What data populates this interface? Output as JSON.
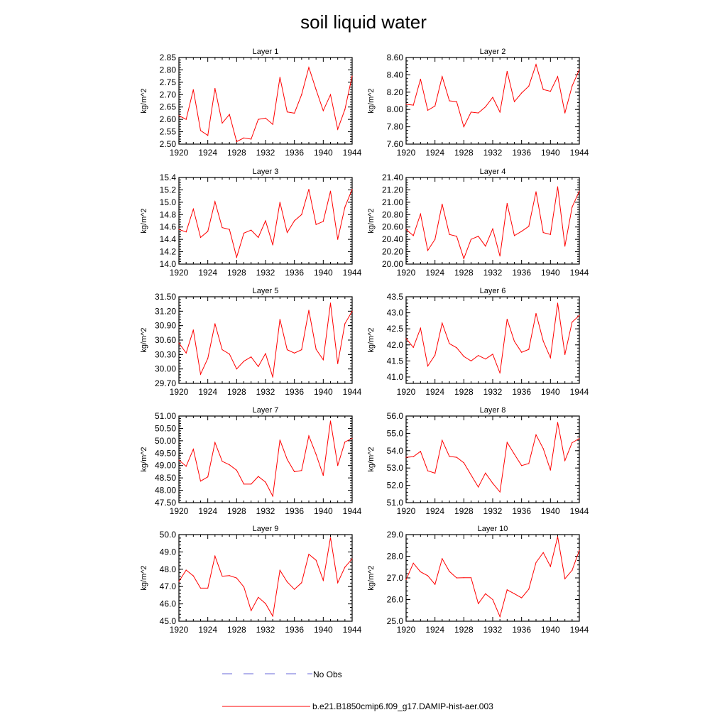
{
  "title": "soil liquid water",
  "legend": {
    "items": [
      {
        "label": "No Obs",
        "color": "#6a6ad8",
        "style": "dashed"
      },
      {
        "label": "b.e21.B1850cmip6.f09_g17.DAMIP-hist-aer.003",
        "color": "#ff0000",
        "style": "solid"
      }
    ]
  },
  "chart_data": [
    {
      "type": "line",
      "title": "Layer 1",
      "ylabel": "kg/m^2",
      "xlabel": "",
      "xlim": [
        1920,
        1944
      ],
      "ylim": [
        2.5,
        2.85
      ],
      "xticks": [
        1920,
        1924,
        1928,
        1932,
        1936,
        1940,
        1944
      ],
      "yticks": [
        "2.50",
        "2.55",
        "2.60",
        "2.65",
        "2.70",
        "2.75",
        "2.80",
        "2.85"
      ],
      "x": [
        1920,
        1921,
        1922,
        1923,
        1924,
        1925,
        1926,
        1927,
        1928,
        1929,
        1930,
        1931,
        1932,
        1933,
        1934,
        1935,
        1936,
        1937,
        1938,
        1939,
        1940,
        1941,
        1942,
        1943,
        1944
      ],
      "series": [
        {
          "name": "b.e21.B1850cmip6.f09_g17.DAMIP-hist-aer.003",
          "color": "#ff0000",
          "values": [
            2.615,
            2.6,
            2.72,
            2.555,
            2.535,
            2.725,
            2.585,
            2.62,
            2.51,
            2.525,
            2.52,
            2.6,
            2.605,
            2.58,
            2.77,
            2.63,
            2.625,
            2.7,
            2.81,
            2.72,
            2.635,
            2.7,
            2.56,
            2.64,
            2.775
          ]
        }
      ]
    },
    {
      "type": "line",
      "title": "Layer 2",
      "ylabel": "kg/m^2",
      "xlabel": "",
      "xlim": [
        1920,
        1944
      ],
      "ylim": [
        7.6,
        8.6
      ],
      "xticks": [
        1920,
        1924,
        1928,
        1932,
        1936,
        1940,
        1944
      ],
      "yticks": [
        "7.60",
        "7.80",
        "8.00",
        "8.20",
        "8.40",
        "8.60"
      ],
      "x": [
        1920,
        1921,
        1922,
        1923,
        1924,
        1925,
        1926,
        1927,
        1928,
        1929,
        1930,
        1931,
        1932,
        1933,
        1934,
        1935,
        1936,
        1937,
        1938,
        1939,
        1940,
        1941,
        1942,
        1943,
        1944
      ],
      "series": [
        {
          "name": "b.e21.B1850cmip6.f09_g17.DAMIP-hist-aer.003",
          "color": "#ff0000",
          "values": [
            8.06,
            8.05,
            8.35,
            7.99,
            8.04,
            8.38,
            8.1,
            8.09,
            7.8,
            7.97,
            7.96,
            8.03,
            8.14,
            7.97,
            8.44,
            8.09,
            8.19,
            8.27,
            8.52,
            8.23,
            8.21,
            8.38,
            7.96,
            8.27,
            8.46
          ]
        }
      ]
    },
    {
      "type": "line",
      "title": "Layer 3",
      "ylabel": "kg/m^2",
      "xlabel": "",
      "xlim": [
        1920,
        1944
      ],
      "ylim": [
        14.0,
        15.4
      ],
      "xticks": [
        1920,
        1924,
        1928,
        1932,
        1936,
        1940,
        1944
      ],
      "yticks": [
        "14.0",
        "14.2",
        "14.4",
        "14.6",
        "14.8",
        "15.0",
        "15.2",
        "15.4"
      ],
      "x": [
        1920,
        1921,
        1922,
        1923,
        1924,
        1925,
        1926,
        1927,
        1928,
        1929,
        1930,
        1931,
        1932,
        1933,
        1934,
        1935,
        1936,
        1937,
        1938,
        1939,
        1940,
        1941,
        1942,
        1943,
        1944
      ],
      "series": [
        {
          "name": "b.e21.B1850cmip6.f09_g17.DAMIP-hist-aer.003",
          "color": "#ff0000",
          "values": [
            14.56,
            14.52,
            14.89,
            14.43,
            14.53,
            15.01,
            14.59,
            14.56,
            14.11,
            14.5,
            14.55,
            14.43,
            14.7,
            14.31,
            15.0,
            14.51,
            14.7,
            14.8,
            15.21,
            14.64,
            14.69,
            15.18,
            14.4,
            14.92,
            15.21
          ]
        }
      ]
    },
    {
      "type": "line",
      "title": "Layer 4",
      "ylabel": "kg/m^2",
      "xlabel": "",
      "xlim": [
        1920,
        1944
      ],
      "ylim": [
        20.0,
        21.4
      ],
      "xticks": [
        1920,
        1924,
        1928,
        1932,
        1936,
        1940,
        1944
      ],
      "yticks": [
        "20.00",
        "20.20",
        "20.40",
        "20.60",
        "20.80",
        "21.00",
        "21.20",
        "21.40"
      ],
      "x": [
        1920,
        1921,
        1922,
        1923,
        1924,
        1925,
        1926,
        1927,
        1928,
        1929,
        1930,
        1931,
        1932,
        1933,
        1934,
        1935,
        1936,
        1937,
        1938,
        1939,
        1940,
        1941,
        1942,
        1943,
        1944
      ],
      "series": [
        {
          "name": "b.e21.B1850cmip6.f09_g17.DAMIP-hist-aer.003",
          "color": "#ff0000",
          "values": [
            20.56,
            20.46,
            20.81,
            20.22,
            20.4,
            20.97,
            20.48,
            20.45,
            20.09,
            20.4,
            20.45,
            20.29,
            20.57,
            20.13,
            20.98,
            20.46,
            20.53,
            20.61,
            21.17,
            20.51,
            20.48,
            21.25,
            20.29,
            20.92,
            21.18
          ]
        }
      ]
    },
    {
      "type": "line",
      "title": "Layer 5",
      "ylabel": "kg/m^2",
      "xlabel": "",
      "xlim": [
        1920,
        1944
      ],
      "ylim": [
        29.7,
        31.5
      ],
      "xticks": [
        1920,
        1924,
        1928,
        1932,
        1936,
        1940,
        1944
      ],
      "yticks": [
        "29.70",
        "30.00",
        "30.30",
        "30.60",
        "30.90",
        "31.20",
        "31.50"
      ],
      "x": [
        1920,
        1921,
        1922,
        1923,
        1924,
        1925,
        1926,
        1927,
        1928,
        1929,
        1930,
        1931,
        1932,
        1933,
        1934,
        1935,
        1936,
        1937,
        1938,
        1939,
        1940,
        1941,
        1942,
        1943,
        1944
      ],
      "series": [
        {
          "name": "b.e21.B1850cmip6.f09_g17.DAMIP-hist-aer.003",
          "color": "#ff0000",
          "values": [
            30.54,
            30.33,
            30.81,
            29.89,
            30.22,
            30.94,
            30.4,
            30.31,
            30.0,
            30.16,
            30.25,
            30.05,
            30.32,
            29.83,
            31.03,
            30.4,
            30.33,
            30.4,
            31.22,
            30.41,
            30.19,
            31.37,
            30.11,
            30.94,
            31.2
          ]
        }
      ]
    },
    {
      "type": "line",
      "title": "Layer 6",
      "ylabel": "kg/m^2",
      "xlabel": "",
      "xlim": [
        1920,
        1944
      ],
      "ylim": [
        40.8,
        43.5
      ],
      "xticks": [
        1920,
        1924,
        1928,
        1932,
        1936,
        1940,
        1944
      ],
      "yticks": [
        "41.0",
        "41.5",
        "42.0",
        "42.5",
        "43.0",
        "43.5"
      ],
      "x": [
        1920,
        1921,
        1922,
        1923,
        1924,
        1925,
        1926,
        1927,
        1928,
        1929,
        1930,
        1931,
        1932,
        1933,
        1934,
        1935,
        1936,
        1937,
        1938,
        1939,
        1940,
        1941,
        1942,
        1943,
        1944
      ],
      "series": [
        {
          "name": "b.e21.B1850cmip6.f09_g17.DAMIP-hist-aer.003",
          "color": "#ff0000",
          "values": [
            42.2,
            41.92,
            42.52,
            41.34,
            41.68,
            42.68,
            42.04,
            41.91,
            41.64,
            41.5,
            41.67,
            41.56,
            41.71,
            41.12,
            42.8,
            42.11,
            41.77,
            41.86,
            42.98,
            42.12,
            41.6,
            43.3,
            41.7,
            42.71,
            42.92
          ]
        }
      ]
    },
    {
      "type": "line",
      "title": "Layer 7",
      "ylabel": "kg/m^2",
      "xlabel": "",
      "xlim": [
        1920,
        1944
      ],
      "ylim": [
        47.5,
        51.0
      ],
      "xticks": [
        1920,
        1924,
        1928,
        1932,
        1936,
        1940,
        1944
      ],
      "yticks": [
        "47.50",
        "48.00",
        "48.50",
        "49.00",
        "49.50",
        "50.00",
        "50.50",
        "51.00"
      ],
      "x": [
        1920,
        1921,
        1922,
        1923,
        1924,
        1925,
        1926,
        1927,
        1928,
        1929,
        1930,
        1931,
        1932,
        1933,
        1934,
        1935,
        1936,
        1937,
        1938,
        1939,
        1940,
        1941,
        1942,
        1943,
        1944
      ],
      "series": [
        {
          "name": "b.e21.B1850cmip6.f09_g17.DAMIP-hist-aer.003",
          "color": "#ff0000",
          "values": [
            49.22,
            48.97,
            49.66,
            48.37,
            48.54,
            49.93,
            49.17,
            49.03,
            48.81,
            48.25,
            48.25,
            48.56,
            48.33,
            47.76,
            50.03,
            49.25,
            48.75,
            48.8,
            50.2,
            49.45,
            48.6,
            50.8,
            49.0,
            49.95,
            50.1
          ]
        }
      ]
    },
    {
      "type": "line",
      "title": "Layer 8",
      "ylabel": "kg/m^2",
      "xlabel": "",
      "xlim": [
        1920,
        1944
      ],
      "ylim": [
        51.0,
        56.0
      ],
      "xticks": [
        1920,
        1924,
        1928,
        1932,
        1936,
        1940,
        1944
      ],
      "yticks": [
        "51.0",
        "52.0",
        "53.0",
        "54.0",
        "55.0",
        "56.0"
      ],
      "x": [
        1920,
        1921,
        1922,
        1923,
        1924,
        1925,
        1926,
        1927,
        1928,
        1929,
        1930,
        1931,
        1932,
        1933,
        1934,
        1935,
        1936,
        1937,
        1938,
        1939,
        1940,
        1941,
        1942,
        1943,
        1944
      ],
      "series": [
        {
          "name": "b.e21.B1850cmip6.f09_g17.DAMIP-hist-aer.003",
          "color": "#ff0000",
          "values": [
            53.62,
            53.65,
            53.96,
            52.84,
            52.7,
            54.6,
            53.67,
            53.62,
            53.3,
            52.6,
            51.9,
            52.71,
            52.12,
            51.62,
            54.48,
            53.8,
            53.14,
            53.26,
            54.92,
            54.12,
            52.88,
            55.63,
            53.43,
            54.46,
            54.7
          ]
        }
      ]
    },
    {
      "type": "line",
      "title": "Layer 9",
      "ylabel": "kg/m^2",
      "xlabel": "",
      "xlim": [
        1920,
        1944
      ],
      "ylim": [
        45.0,
        50.0
      ],
      "xticks": [
        1920,
        1924,
        1928,
        1932,
        1936,
        1940,
        1944
      ],
      "yticks": [
        "45.0",
        "46.0",
        "47.0",
        "48.0",
        "49.0",
        "50.0"
      ],
      "x": [
        1920,
        1921,
        1922,
        1923,
        1924,
        1925,
        1926,
        1927,
        1928,
        1929,
        1930,
        1931,
        1932,
        1933,
        1934,
        1935,
        1936,
        1937,
        1938,
        1939,
        1940,
        1941,
        1942,
        1943,
        1944
      ],
      "series": [
        {
          "name": "b.e21.B1850cmip6.f09_g17.DAMIP-hist-aer.003",
          "color": "#ff0000",
          "values": [
            47.3,
            47.95,
            47.62,
            46.91,
            46.91,
            48.76,
            47.6,
            47.63,
            47.49,
            46.98,
            45.61,
            46.38,
            46.02,
            45.29,
            47.94,
            47.27,
            46.84,
            47.22,
            48.87,
            48.52,
            47.36,
            49.83,
            47.22,
            48.12,
            48.6
          ]
        }
      ]
    },
    {
      "type": "line",
      "title": "Layer 10",
      "ylabel": "kg/m^2",
      "xlabel": "",
      "xlim": [
        1920,
        1944
      ],
      "ylim": [
        25.0,
        29.0
      ],
      "xticks": [
        1920,
        1924,
        1928,
        1932,
        1936,
        1940,
        1944
      ],
      "yticks": [
        "25.0",
        "26.0",
        "27.0",
        "28.0",
        "29.0"
      ],
      "x": [
        1920,
        1921,
        1922,
        1923,
        1924,
        1925,
        1926,
        1927,
        1928,
        1929,
        1930,
        1931,
        1932,
        1933,
        1934,
        1935,
        1936,
        1937,
        1938,
        1939,
        1940,
        1941,
        1942,
        1943,
        1944
      ],
      "series": [
        {
          "name": "b.e21.B1850cmip6.f09_g17.DAMIP-hist-aer.003",
          "color": "#ff0000",
          "values": [
            26.92,
            27.68,
            27.28,
            27.1,
            26.7,
            27.89,
            27.3,
            27.0,
            27.01,
            27.01,
            25.81,
            26.27,
            26.0,
            25.21,
            26.45,
            26.27,
            26.08,
            26.48,
            27.71,
            28.17,
            27.53,
            28.9,
            26.96,
            27.35,
            28.27
          ]
        }
      ]
    }
  ]
}
